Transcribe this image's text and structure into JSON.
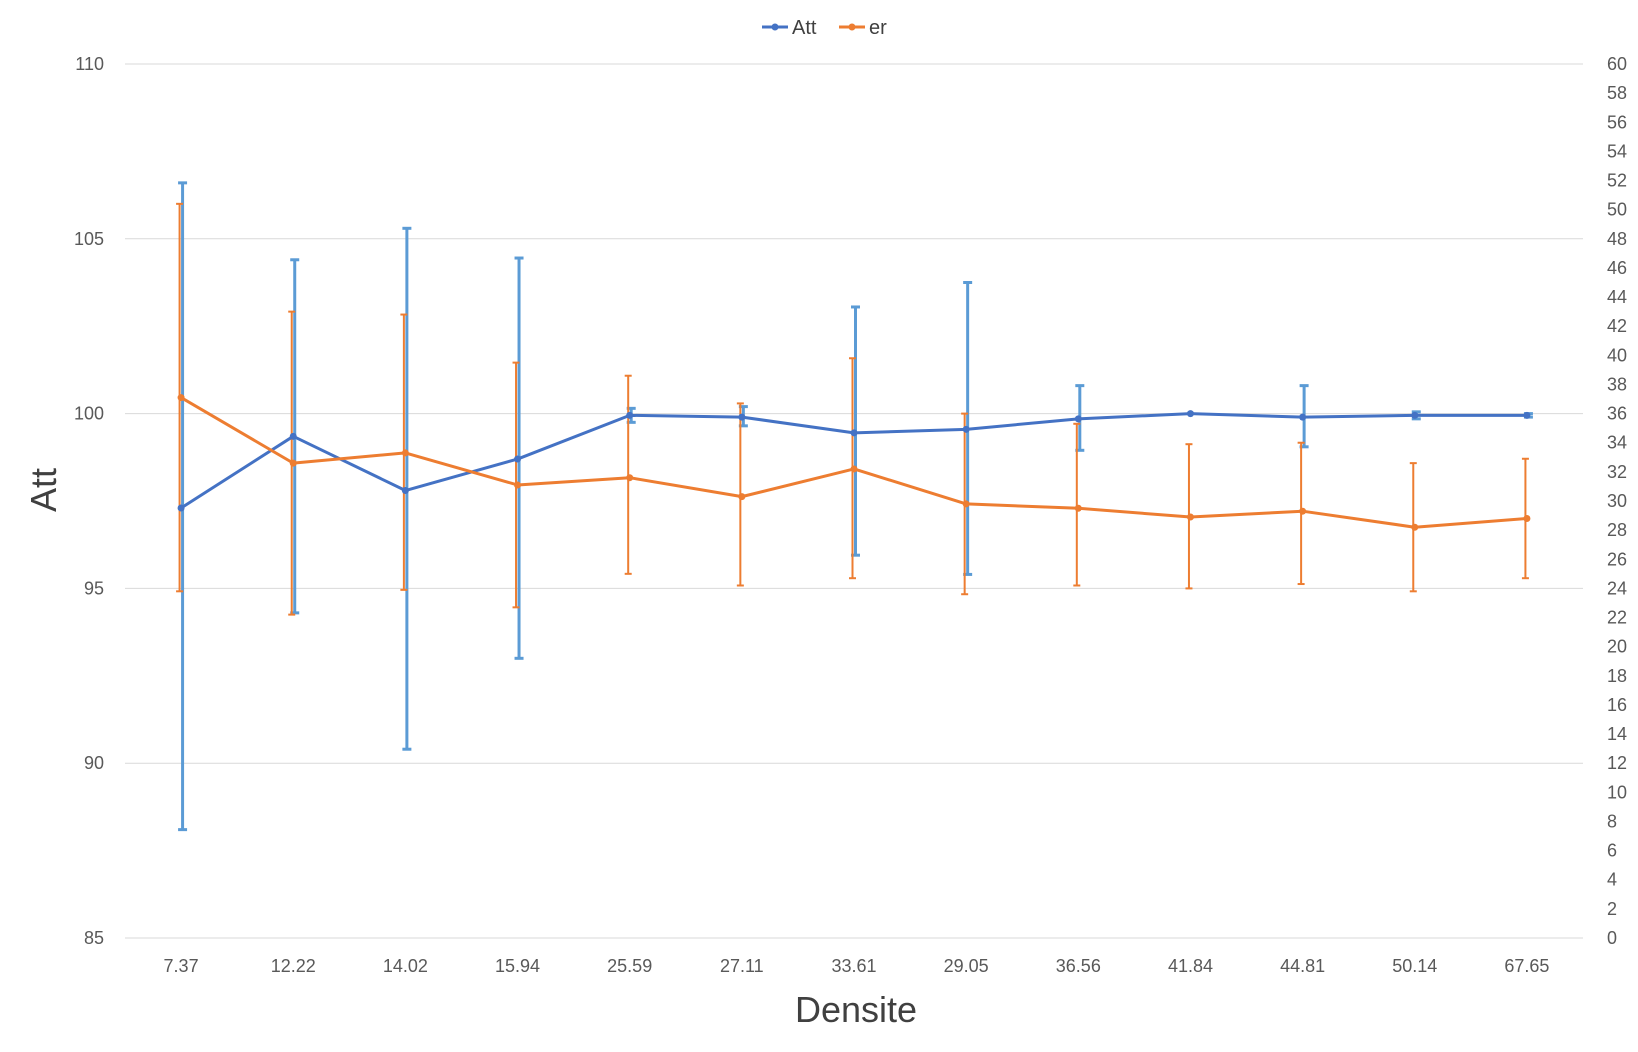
{
  "chart_data": {
    "type": "line",
    "categories": [
      "7.37",
      "12.22",
      "14.02",
      "15.94",
      "25.59",
      "27.11",
      "33.61",
      "29.05",
      "36.56",
      "41.84",
      "44.81",
      "50.14",
      "67.65"
    ],
    "xlabel": "Densite",
    "ylabel": "Att",
    "ylim": [
      85,
      110
    ],
    "y2lim": [
      0,
      60
    ],
    "yticks": [
      "85",
      "90",
      "95",
      "100",
      "105",
      "110"
    ],
    "y2ticks": [
      "0",
      "2",
      "4",
      "6",
      "8",
      "10",
      "12",
      "14",
      "16",
      "18",
      "20",
      "22",
      "24",
      "26",
      "28",
      "30",
      "32",
      "34",
      "36",
      "38",
      "40",
      "42",
      "44",
      "46",
      "48",
      "50",
      "52",
      "54",
      "56",
      "58",
      "60"
    ],
    "grid": true,
    "legend_position": "top",
    "series": [
      {
        "name": "Att",
        "axis": "left",
        "color": "#4472C4",
        "error_color": "#5B9BD5",
        "values": [
          97.3,
          99.35,
          97.8,
          98.7,
          99.95,
          99.9,
          99.45,
          99.55,
          99.85,
          100.0,
          99.9,
          99.95,
          99.95
        ],
        "err_upper": [
          106.6,
          104.4,
          105.3,
          104.45,
          100.15,
          100.2,
          103.05,
          103.75,
          100.8,
          100.0,
          100.8,
          100.05,
          100.0
        ],
        "err_lower": [
          88.1,
          94.3,
          90.4,
          93.0,
          99.75,
          99.65,
          95.95,
          95.4,
          98.95,
          100.0,
          99.05,
          99.85,
          99.9
        ]
      },
      {
        "name": "er",
        "axis": "right",
        "color": "#ED7D31",
        "error_color": "#ED7D31",
        "values": [
          37.1,
          32.6,
          33.3,
          31.1,
          31.6,
          30.3,
          32.2,
          29.8,
          29.5,
          28.9,
          29.3,
          28.2,
          28.8
        ],
        "err_upper": [
          50.4,
          43.0,
          42.8,
          39.5,
          38.6,
          36.7,
          39.8,
          36.0,
          35.3,
          33.9,
          34.0,
          32.6,
          32.9
        ],
        "err_lower": [
          23.8,
          22.2,
          23.9,
          22.7,
          25.0,
          24.2,
          24.7,
          23.6,
          24.2,
          24.0,
          24.3,
          23.8,
          24.7
        ]
      }
    ]
  }
}
